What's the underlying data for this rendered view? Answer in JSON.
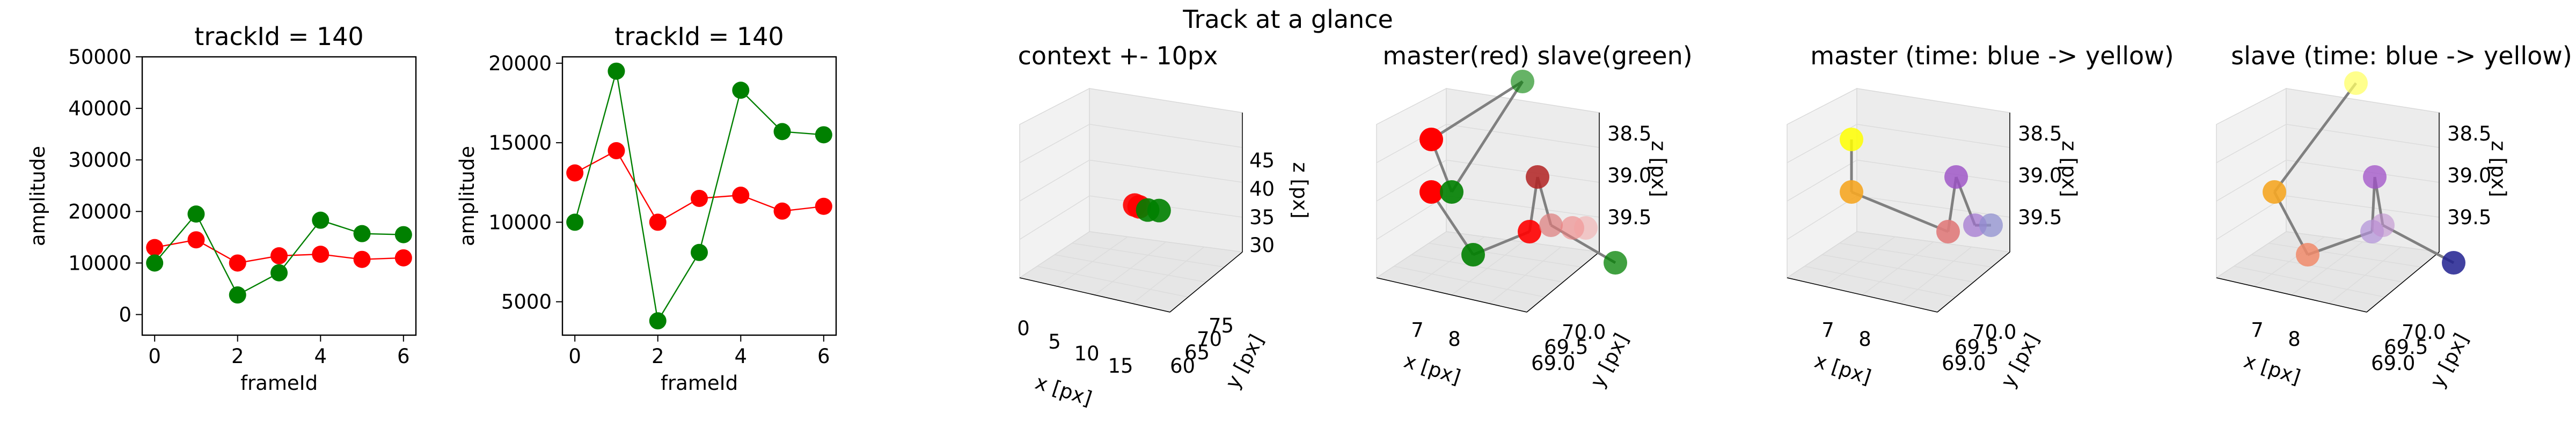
{
  "suptitle": "Track at a glance",
  "colors": {
    "master": "#ff0000",
    "slave": "#008000",
    "pane": "#f2f2f2",
    "grid": "#d9d9d9",
    "connector": "#808080"
  },
  "chart_data": [
    {
      "type": "line",
      "title": "trackId = 140",
      "xlabel": "frameId",
      "ylabel": "amplitude",
      "x": [
        0,
        1,
        2,
        3,
        4,
        5,
        6
      ],
      "xticks": [
        0,
        2,
        4,
        6
      ],
      "yticks": [
        0,
        10000,
        20000,
        30000,
        40000,
        50000
      ],
      "xlim": [
        -0.3,
        6.3
      ],
      "ylim": [
        -4000,
        50000
      ],
      "series": [
        {
          "color": "#ff0000",
          "values": [
            13000,
            14500,
            10000,
            11400,
            11700,
            10700,
            11000
          ]
        },
        {
          "color": "#008000",
          "values": [
            10000,
            19500,
            3800,
            8100,
            18300,
            15700,
            15500
          ]
        }
      ]
    },
    {
      "type": "line",
      "title": "trackId = 140",
      "xlabel": "frameId",
      "ylabel": "amplitude",
      "x": [
        0,
        1,
        2,
        3,
        4,
        5,
        6
      ],
      "xticks": [
        0,
        2,
        4,
        6
      ],
      "yticks": [
        5000,
        10000,
        15000,
        20000
      ],
      "xlim": [
        -0.3,
        6.3
      ],
      "ylim": [
        2900,
        20400
      ],
      "series": [
        {
          "color": "#ff0000",
          "values": [
            13100,
            14500,
            10000,
            11500,
            11700,
            10700,
            11000
          ]
        },
        {
          "color": "#008000",
          "values": [
            10000,
            19500,
            3800,
            8100,
            18300,
            15700,
            15500
          ]
        }
      ]
    },
    {
      "type": "scatter3d",
      "title": "context +- 10px",
      "xlabel": "x [px]",
      "ylabel": "y [px]",
      "zlabel": "z [px]",
      "xticks": [
        "0",
        "5",
        "10",
        "15"
      ],
      "yticks": [
        "60",
        "65",
        "70",
        "75"
      ],
      "zticks": [
        "30",
        "35",
        "40",
        "45"
      ],
      "points": [
        {
          "x": 7.0,
          "y": 69.3,
          "z": 39.0,
          "color": "#ff0000"
        },
        {
          "x": 7.3,
          "y": 69.6,
          "z": 38.7,
          "color": "#ff0000"
        },
        {
          "x": 8.2,
          "y": 69.5,
          "z": 38.6,
          "color": "#008000"
        },
        {
          "x": 9.0,
          "y": 70.2,
          "z": 38.4,
          "color": "#008000"
        }
      ]
    },
    {
      "type": "scatter3d",
      "title": "master(red) slave(green)",
      "xlabel": "x [px]",
      "ylabel": "y [px]",
      "zlabel": "z [px]",
      "xticks": [
        "7",
        "8"
      ],
      "yticks": [
        "69.0",
        "69.5",
        "70.0"
      ],
      "zticks": [
        "38.5",
        "39.0",
        "39.5"
      ]
    },
    {
      "type": "scatter3d",
      "title": "master (time: blue -> yellow)",
      "xlabel": "x [px]",
      "ylabel": "y [px]",
      "zlabel": "z [px]",
      "xticks": [
        "7",
        "8"
      ],
      "yticks": [
        "69.0",
        "69.5",
        "70.0"
      ],
      "zticks": [
        "38.5",
        "39.0",
        "39.5"
      ]
    },
    {
      "type": "scatter3d",
      "title": "slave (time: blue -> yellow)",
      "xlabel": "x [px]",
      "ylabel": "y [px]",
      "zlabel": "z [px]",
      "xticks": [
        "7",
        "8"
      ],
      "yticks": [
        "69.0",
        "69.5",
        "70.0"
      ],
      "zticks": [
        "38.5",
        "39.0",
        "39.5"
      ]
    }
  ]
}
